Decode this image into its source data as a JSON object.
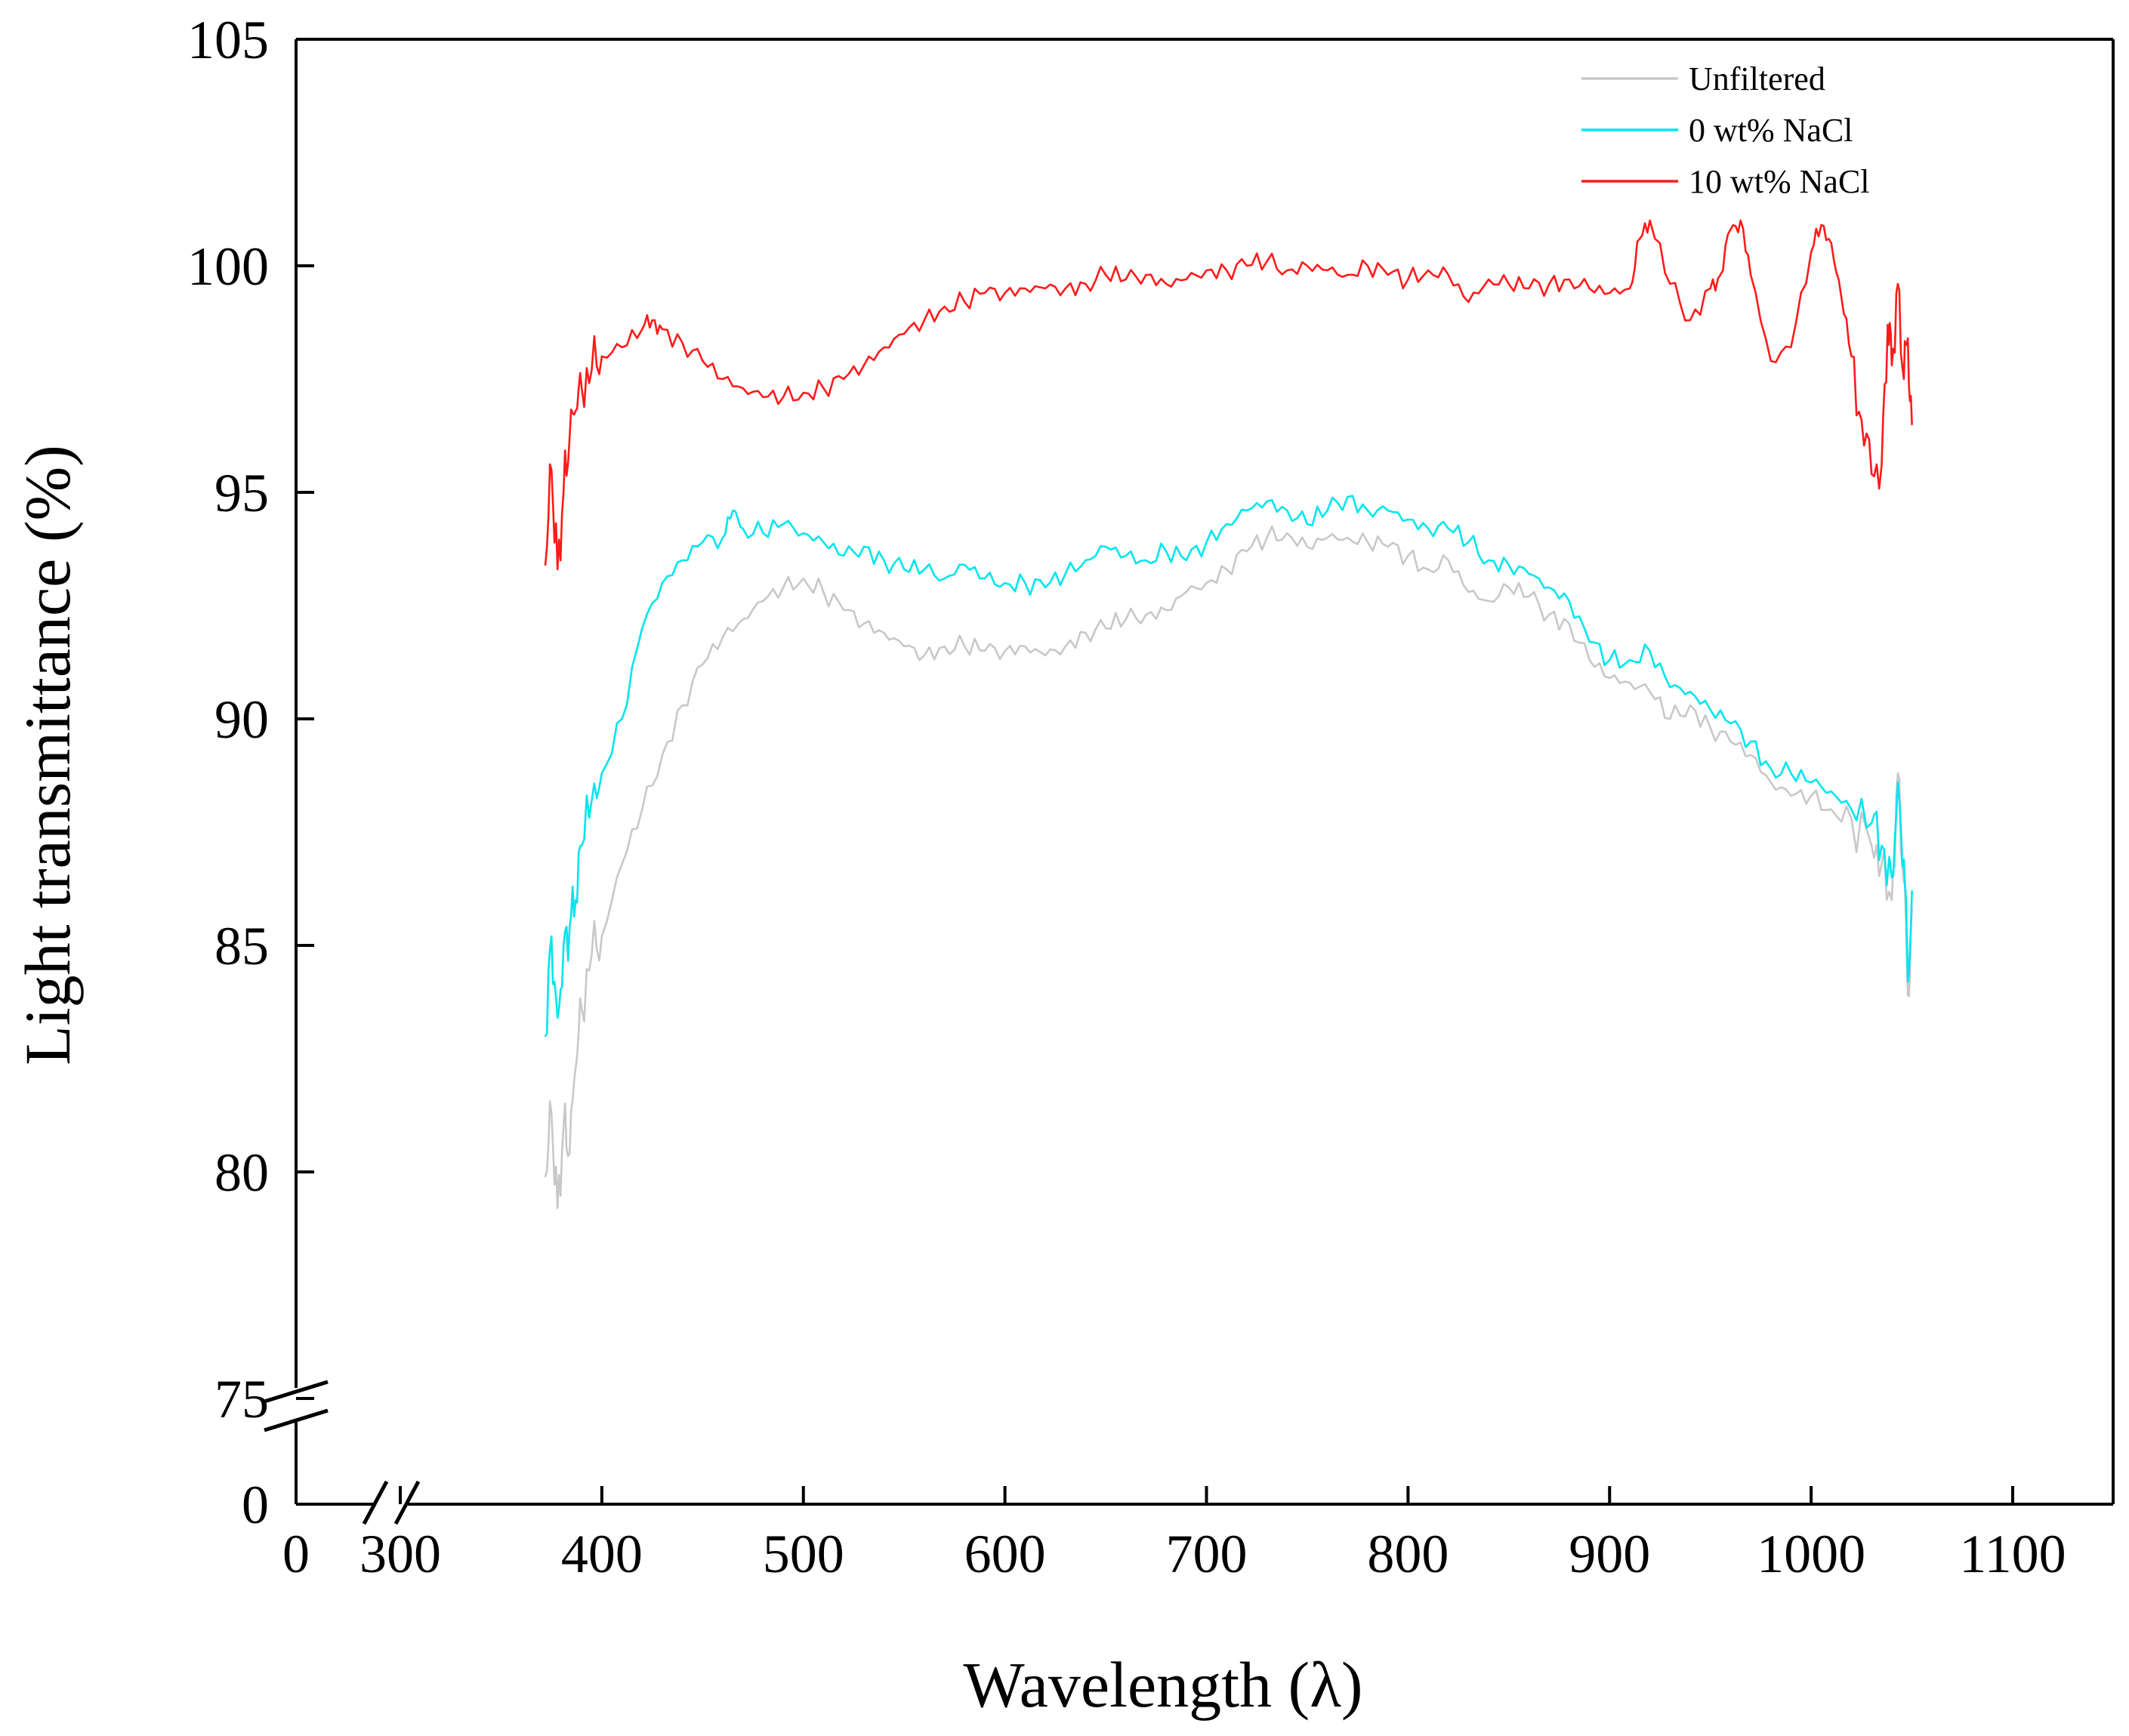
{
  "chart_data": {
    "type": "line",
    "title": "",
    "xlabel": "Wavelength (λ)",
    "ylabel": "Light transmittance (%)",
    "xlim": [
      300,
      1150
    ],
    "ylim": [
      75,
      105
    ],
    "x_ticks": [
      {
        "value": 0,
        "label": "0",
        "break_region": true
      },
      {
        "value": 300,
        "label": "300"
      },
      {
        "value": 400,
        "label": "400"
      },
      {
        "value": 500,
        "label": "500"
      },
      {
        "value": 600,
        "label": "600"
      },
      {
        "value": 700,
        "label": "700"
      },
      {
        "value": 800,
        "label": "800"
      },
      {
        "value": 900,
        "label": "900"
      },
      {
        "value": 1000,
        "label": "1000"
      },
      {
        "value": 1100,
        "label": "1100"
      }
    ],
    "y_ticks": [
      {
        "value": 0,
        "label": "0",
        "break_region": true
      },
      {
        "value": 75,
        "label": "75"
      },
      {
        "value": 80,
        "label": "80"
      },
      {
        "value": 85,
        "label": "85"
      },
      {
        "value": 90,
        "label": "90"
      },
      {
        "value": 95,
        "label": "95"
      },
      {
        "value": 100,
        "label": "100"
      },
      {
        "value": 105,
        "label": "105"
      }
    ],
    "axis_breaks": {
      "x": "between 0 and 300",
      "y": "between 0 and 75"
    },
    "grid": false,
    "legend_position": "top-right",
    "series": [
      {
        "name": "Unfiltered",
        "color": "#c8c8c8",
        "x": [
          372,
          375,
          378,
          381,
          384,
          387,
          390,
          395,
          400,
          410,
          420,
          430,
          440,
          450,
          460,
          470,
          480,
          490,
          500,
          510,
          520,
          530,
          540,
          550,
          560,
          570,
          580,
          590,
          600,
          610,
          620,
          630,
          640,
          650,
          660,
          670,
          680,
          690,
          700,
          710,
          720,
          730,
          740,
          750,
          760,
          770,
          780,
          790,
          800,
          810,
          820,
          830,
          840,
          850,
          860,
          870,
          880,
          890,
          900,
          910,
          920,
          930,
          940,
          950,
          960,
          970,
          980,
          990,
          1000,
          1010,
          1020,
          1030,
          1035,
          1040,
          1043,
          1046,
          1048,
          1050
        ],
        "values": [
          79.9,
          81.3,
          79.2,
          81.0,
          80.4,
          82.3,
          83.6,
          84.8,
          85.2,
          86.8,
          88.0,
          89.2,
          90.3,
          91.2,
          91.8,
          92.2,
          92.6,
          92.9,
          93.1,
          92.8,
          92.4,
          92.1,
          91.9,
          91.6,
          91.4,
          91.6,
          91.6,
          91.5,
          91.5,
          91.6,
          91.4,
          91.6,
          91.9,
          92.0,
          92.2,
          92.3,
          92.4,
          92.8,
          93.0,
          93.3,
          93.7,
          94.0,
          94.1,
          93.8,
          94.0,
          94.0,
          93.9,
          93.8,
          93.6,
          93.3,
          93.5,
          92.8,
          92.6,
          92.9,
          92.7,
          92.3,
          92.1,
          91.3,
          90.9,
          90.8,
          90.6,
          90.0,
          90.3,
          89.8,
          89.5,
          89.2,
          88.6,
          88.3,
          88.3,
          88.0,
          87.8,
          87.2,
          86.8,
          86.0,
          88.8,
          86.4,
          83.9,
          85.8
        ]
      },
      {
        "name": "0 wt% NaCl",
        "color": "#00e5ee",
        "x": [
          372,
          375,
          378,
          381,
          384,
          387,
          390,
          395,
          400,
          410,
          420,
          430,
          440,
          450,
          460,
          465,
          470,
          480,
          490,
          500,
          510,
          520,
          530,
          540,
          550,
          560,
          570,
          580,
          590,
          600,
          610,
          620,
          630,
          640,
          650,
          660,
          670,
          680,
          690,
          700,
          710,
          720,
          730,
          740,
          750,
          760,
          770,
          780,
          790,
          800,
          810,
          820,
          830,
          840,
          850,
          860,
          870,
          880,
          890,
          900,
          910,
          920,
          930,
          940,
          950,
          960,
          970,
          980,
          990,
          1000,
          1010,
          1020,
          1030,
          1035,
          1040,
          1043,
          1046,
          1048,
          1050
        ],
        "values": [
          83.0,
          85.2,
          83.4,
          85.0,
          85.4,
          86.0,
          87.2,
          88.2,
          88.8,
          90.0,
          92.0,
          93.0,
          93.5,
          93.9,
          94.0,
          94.6,
          94.2,
          94.1,
          94.3,
          94.1,
          93.9,
          93.6,
          93.8,
          93.5,
          93.3,
          93.3,
          93.1,
          93.4,
          93.1,
          93.0,
          93.0,
          92.9,
          93.2,
          93.5,
          93.8,
          93.6,
          93.5,
          93.7,
          93.5,
          93.9,
          94.3,
          94.6,
          94.8,
          94.6,
          94.3,
          94.6,
          94.9,
          94.6,
          94.6,
          94.4,
          94.2,
          94.2,
          93.9,
          93.5,
          93.4,
          93.2,
          92.9,
          92.6,
          91.7,
          91.3,
          91.3,
          91.5,
          90.7,
          90.6,
          90.2,
          89.9,
          89.5,
          88.9,
          88.8,
          88.6,
          88.4,
          88.0,
          87.7,
          87.2,
          86.5,
          88.6,
          86.9,
          84.2,
          86.2
        ]
      },
      {
        "name": "10 wt% NaCl",
        "color": "#ff1a1a",
        "x": [
          372,
          375,
          378,
          381,
          384,
          387,
          390,
          395,
          400,
          410,
          420,
          425,
          430,
          440,
          450,
          460,
          470,
          480,
          490,
          500,
          510,
          520,
          530,
          540,
          550,
          560,
          570,
          580,
          590,
          600,
          610,
          620,
          630,
          640,
          650,
          660,
          670,
          680,
          690,
          700,
          710,
          720,
          730,
          740,
          750,
          760,
          770,
          780,
          790,
          800,
          810,
          820,
          830,
          840,
          850,
          860,
          870,
          880,
          890,
          900,
          910,
          915,
          920,
          930,
          940,
          950,
          955,
          960,
          965,
          970,
          980,
          990,
          1000,
          1005,
          1010,
          1015,
          1020,
          1025,
          1030,
          1035,
          1038,
          1040,
          1043,
          1046,
          1048,
          1050
        ],
        "values": [
          93.4,
          95.5,
          93.3,
          95.0,
          96.2,
          96.8,
          97.3,
          97.7,
          98.0,
          98.2,
          98.6,
          98.8,
          98.6,
          98.3,
          97.9,
          97.5,
          97.3,
          97.1,
          97.1,
          97.2,
          97.3,
          97.5,
          97.8,
          98.2,
          98.5,
          98.8,
          99.1,
          99.2,
          99.4,
          99.4,
          99.5,
          99.5,
          99.5,
          99.6,
          99.8,
          99.7,
          99.8,
          99.6,
          99.7,
          99.9,
          99.9,
          100.0,
          100.1,
          99.9,
          100.0,
          99.9,
          99.8,
          100.0,
          99.8,
          99.7,
          99.9,
          99.8,
          99.2,
          99.7,
          99.6,
          99.5,
          99.6,
          99.7,
          99.5,
          99.4,
          99.5,
          100.6,
          101.0,
          99.6,
          98.8,
          99.5,
          99.8,
          100.8,
          101.0,
          99.8,
          97.9,
          98.2,
          100.3,
          100.9,
          100.5,
          99.3,
          98.0,
          96.6,
          95.4,
          95.6,
          98.7,
          97.8,
          99.6,
          97.5,
          98.4,
          96.5
        ]
      }
    ]
  }
}
